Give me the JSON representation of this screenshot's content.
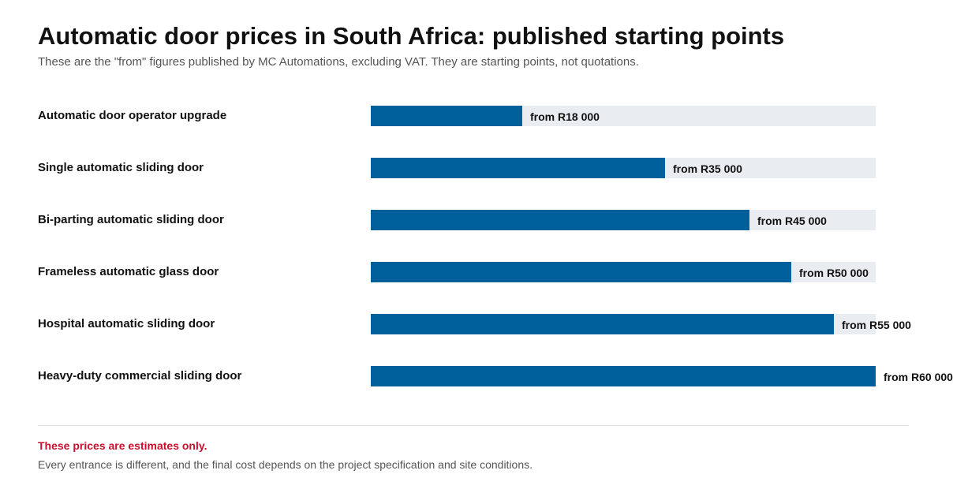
{
  "header": {
    "title": "Automatic door prices in South Africa: published starting points",
    "subtitle": "These are the \"from\" figures published by MC Automations, excluding VAT. They are starting points, not quotations."
  },
  "chart_data": {
    "type": "bar",
    "orientation": "horizontal",
    "categories": [
      "Automatic door operator upgrade",
      "Single automatic sliding door",
      "Bi-parting automatic sliding door",
      "Frameless automatic glass door",
      "Hospital automatic sliding door",
      "Heavy-duty commercial sliding door"
    ],
    "values": [
      18000,
      35000,
      45000,
      50000,
      55000,
      60000
    ],
    "value_labels": [
      "from R18 000",
      "from R35 000",
      "from R45 000",
      "from R50 000",
      "from R55 000",
      "from R60 000"
    ],
    "xlim": [
      0,
      60000
    ],
    "grid": false,
    "legend": "none",
    "bar_color": "#00609c",
    "track_color": "#e9edf1"
  },
  "footer": {
    "warning": "These prices are estimates only.",
    "note": "Every entrance is different, and the final cost depends on the project specification and site conditions.",
    "warning_color": "#c8102e"
  }
}
